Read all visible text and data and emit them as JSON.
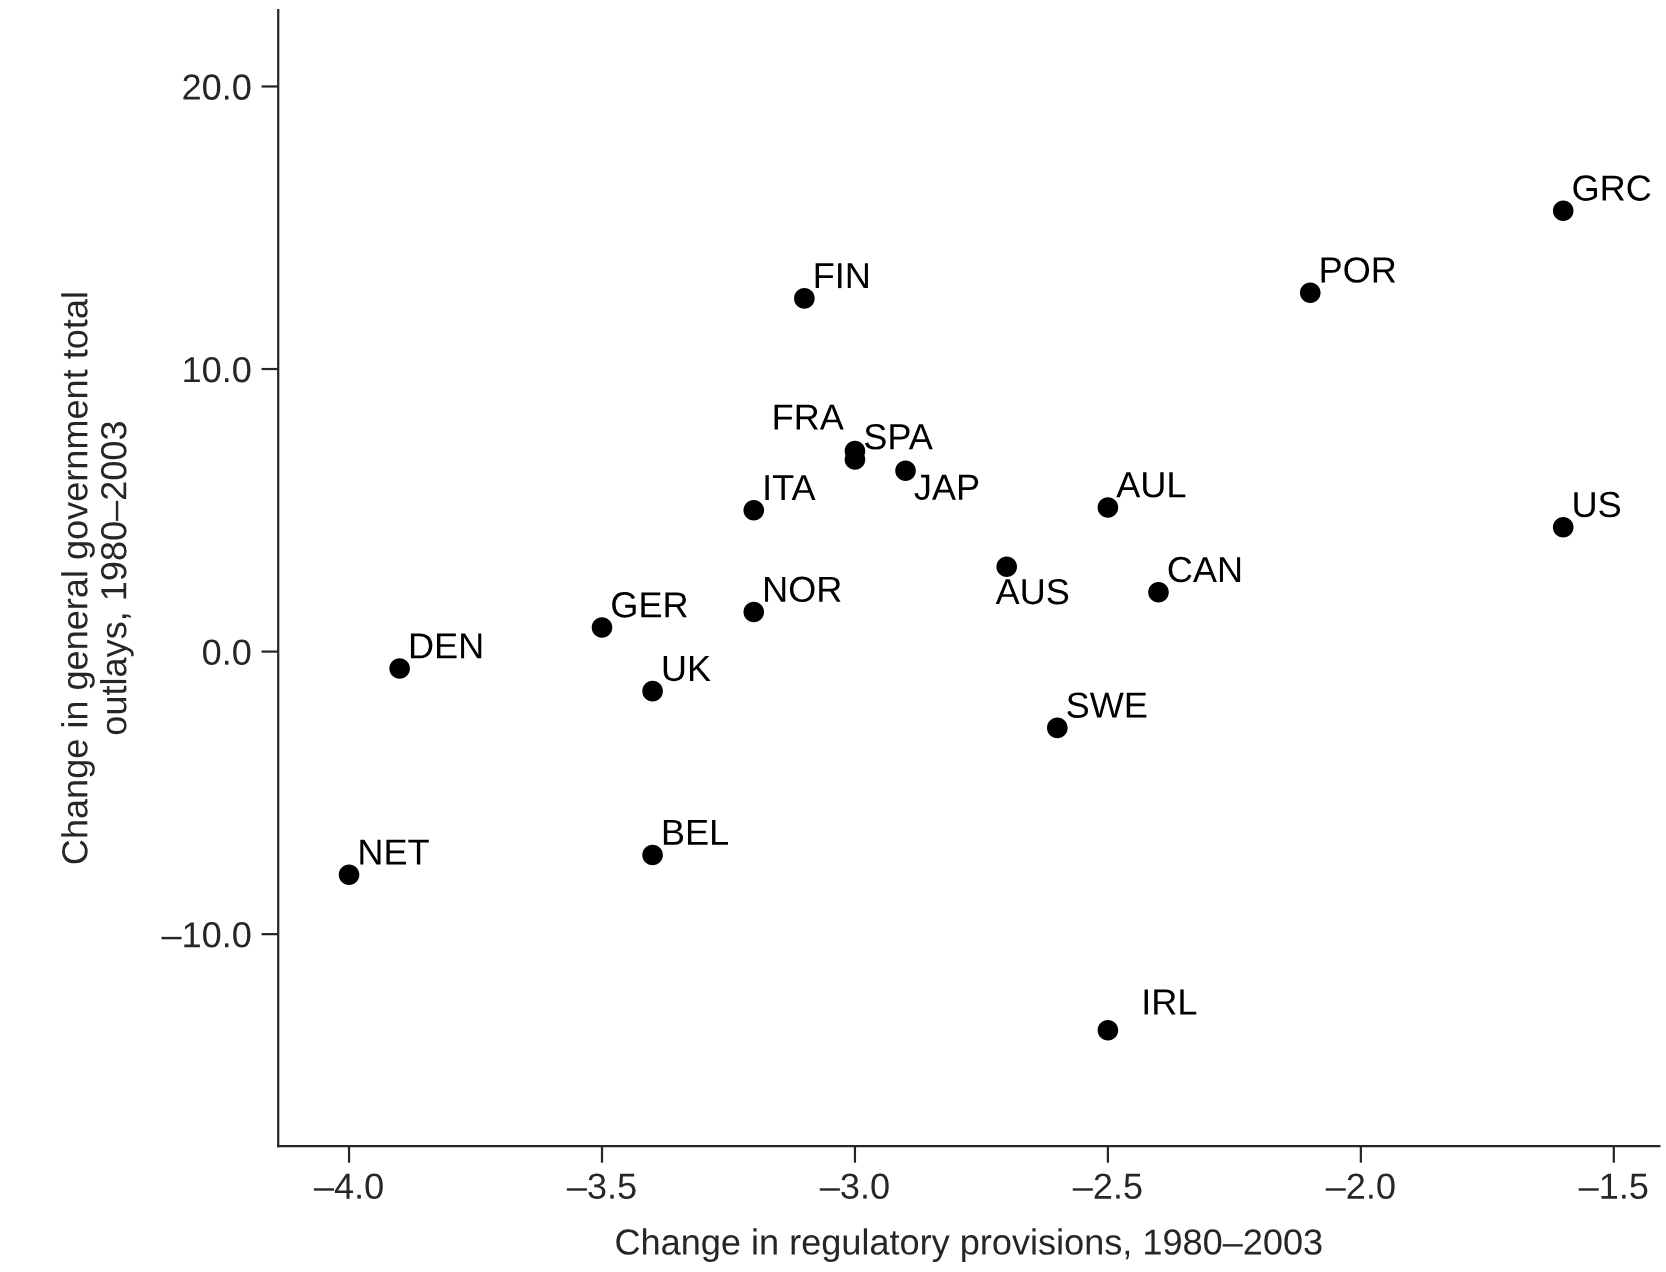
{
  "chart_data": {
    "type": "scatter",
    "xlabel": "Change in regulatory provisions, 1980–2003",
    "ylabel": "Change in general government total\noutlays, 1980–2003",
    "xlim": [
      -4.14,
      -1.41
    ],
    "xticks": [
      {
        "value": -4.0,
        "label": "–4.0"
      },
      {
        "value": -3.5,
        "label": "–3.5"
      },
      {
        "value": -3.0,
        "label": "–3.0"
      },
      {
        "value": -2.5,
        "label": "–2.5"
      },
      {
        "value": -2.0,
        "label": "–2.0"
      },
      {
        "value": -1.5,
        "label": "–1.5"
      }
    ],
    "ylim": [
      -17.5,
      22.7
    ],
    "yticks": [
      {
        "value": -10,
        "label": "–10.0"
      },
      {
        "value": 0,
        "label": "0.0"
      },
      {
        "value": 10,
        "label": "10.0"
      },
      {
        "value": 20,
        "label": "20.0"
      }
    ],
    "grid": false,
    "legend": false,
    "marker": "circle",
    "series": [
      {
        "color": "#000000",
        "x": [
          -4.0,
          -3.9,
          -3.5,
          -3.4,
          -3.4,
          -3.2,
          -3.2,
          -3.1,
          -3.0,
          -3.0,
          -2.9,
          -2.7,
          -2.6,
          -2.5,
          -2.5,
          -2.4,
          -2.1,
          -1.6,
          -1.6
        ],
        "values": [
          -7.9,
          -0.6,
          0.85,
          -1.4,
          -7.2,
          5.0,
          1.4,
          12.5,
          7.1,
          6.8,
          6.4,
          3.0,
          -2.7,
          5.1,
          -13.4,
          2.1,
          12.7,
          15.6,
          4.4
        ],
        "value_labels": [
          "NET",
          "DEN",
          "GER",
          "UK",
          "BEL",
          "ITA",
          "NOR",
          "FIN",
          "FRA",
          "SPA",
          "JAP",
          "AUS",
          "SWE",
          "AUL",
          "IRL",
          "CAN",
          "POR",
          "GRC",
          "US"
        ]
      }
    ]
  }
}
